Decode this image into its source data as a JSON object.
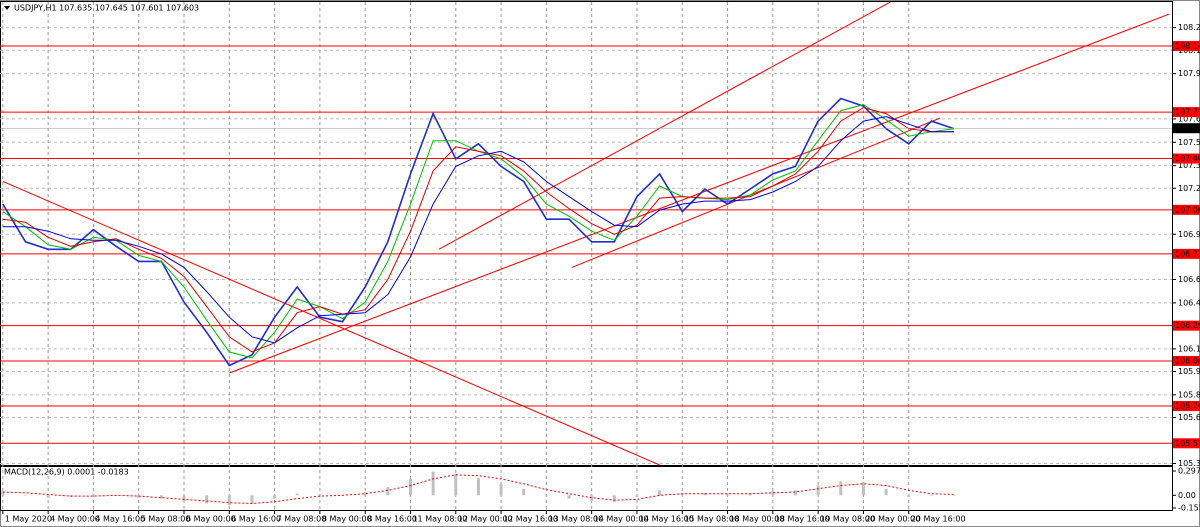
{
  "chart_data": [
    {
      "type": "line",
      "title": "USDJPY,H1  107.635 107.645 107.601 107.603",
      "x": [
        0,
        8,
        16,
        24,
        32,
        40,
        48,
        56,
        64,
        72,
        80,
        88,
        96,
        104,
        112,
        120,
        128,
        136,
        144,
        152,
        160,
        168,
        176,
        184,
        192,
        200,
        208,
        216,
        224,
        232,
        240,
        248,
        256,
        264,
        272,
        280,
        288,
        296,
        304,
        312,
        320,
        328,
        336
      ],
      "series": [
        {
          "color": "#1f2fd0",
          "values": [
            107.1,
            106.85,
            106.8,
            106.8,
            106.93,
            106.82,
            106.72,
            106.72,
            106.45,
            106.25,
            106.03,
            106.1,
            106.35,
            106.55,
            106.35,
            106.32,
            106.55,
            106.85,
            107.3,
            107.7,
            107.4,
            107.5,
            107.35,
            107.25,
            107.0,
            107.0,
            106.85,
            106.85,
            107.15,
            107.3,
            107.05,
            107.2,
            107.1,
            107.2,
            107.3,
            107.35,
            107.65,
            107.8,
            107.75,
            107.6,
            107.5,
            107.65,
            107.6
          ]
        },
        {
          "color": "#00c000",
          "values": [
            107.05,
            106.95,
            106.83,
            106.8,
            106.88,
            106.86,
            106.76,
            106.72,
            106.55,
            106.33,
            106.12,
            106.08,
            106.25,
            106.47,
            106.42,
            106.34,
            106.45,
            106.72,
            107.1,
            107.52,
            107.52,
            107.45,
            107.4,
            107.28,
            107.1,
            107.02,
            106.92,
            106.86,
            107.02,
            107.22,
            107.15,
            107.14,
            107.13,
            107.16,
            107.26,
            107.32,
            107.52,
            107.72,
            107.76,
            107.66,
            107.55,
            107.58,
            107.6
          ]
        },
        {
          "color": "#e00000",
          "values": [
            107.0,
            106.98,
            106.88,
            106.82,
            106.85,
            106.87,
            106.8,
            106.74,
            106.62,
            106.42,
            106.22,
            106.12,
            106.18,
            106.38,
            106.42,
            106.37,
            106.4,
            106.6,
            106.92,
            107.32,
            107.48,
            107.45,
            107.42,
            107.32,
            107.18,
            107.07,
            106.97,
            106.9,
            106.96,
            107.14,
            107.15,
            107.14,
            107.14,
            107.15,
            107.22,
            107.3,
            107.45,
            107.65,
            107.74,
            107.7,
            107.6,
            107.58,
            107.58
          ]
        },
        {
          "color": "#0000e0",
          "values": [
            106.95,
            106.95,
            106.92,
            106.87,
            106.86,
            106.86,
            106.82,
            106.77,
            106.68,
            106.52,
            106.35,
            106.22,
            106.18,
            106.28,
            106.36,
            106.37,
            106.38,
            106.5,
            106.75,
            107.1,
            107.35,
            107.42,
            107.45,
            107.38,
            107.25,
            107.15,
            107.05,
            106.96,
            106.95,
            107.06,
            107.1,
            107.12,
            107.12,
            107.13,
            107.18,
            107.25,
            107.35,
            107.52,
            107.65,
            107.68,
            107.63,
            107.58,
            107.58
          ]
        }
      ],
      "xlim": [
        -1,
        413
      ],
      "ylim": [
        105.37,
        108.44
      ],
      "yticks": [
        {
          "value": 108.27,
          "label": "108.270"
        },
        {
          "value": 108.12,
          "label": "108.120"
        },
        107.965,
        107.665,
        {
          "value": 107.51,
          "label": "107.510"
        },
        107.355,
        107.205,
        {
          "value": 106.9,
          "label": "106.900"
        },
        {
          "value": 106.6,
          "label": "106.600"
        },
        106.445,
        {
          "value": 106.14,
          "label": "106.140"
        },
        {
          "value": 105.99,
          "label": "105.990"
        },
        105.835,
        105.685,
        {
          "value": 105.38,
          "label": "105.380"
        }
      ],
      "xticks": [
        {
          "value": 0,
          "label": "1 May 2020"
        },
        {
          "value": 16,
          "label": "4 May 00:00"
        },
        {
          "value": 32,
          "label": "4 May 16:00"
        },
        {
          "value": 48,
          "label": "5 May 08:00"
        },
        {
          "value": 64,
          "label": "6 May 00:00"
        },
        {
          "value": 80,
          "label": "6 May 16:00"
        },
        {
          "value": 96,
          "label": "7 May 08:00"
        },
        {
          "value": 112,
          "label": "8 May 00:00"
        },
        {
          "value": 128,
          "label": "8 May 16:00"
        },
        {
          "value": 144,
          "label": "11 May 08:00"
        },
        {
          "value": 160,
          "label": "12 May 00:00"
        },
        {
          "value": 176,
          "label": "12 May 16:00"
        },
        {
          "value": 192,
          "label": "13 May 08:00"
        },
        {
          "value": 208,
          "label": "14 May 00:00"
        },
        {
          "value": 224,
          "label": "14 May 16:00"
        },
        {
          "value": 240,
          "label": "15 May 08:00"
        },
        {
          "value": 256,
          "label": "18 May 00:00"
        },
        {
          "value": 272,
          "label": "18 May 16:00"
        },
        {
          "value": 288,
          "label": "19 May 08:00"
        },
        {
          "value": 304,
          "label": "20 May 00:00"
        },
        {
          "value": 320,
          "label": "20 May 16:00"
        }
      ],
      "levels": [
        108.148,
        {
          "value": 107.71,
          "label": "107.710"
        },
        107.402,
        107.062,
        {
          "value": 106.77,
          "label": "106.770"
        },
        106.294,
        {
          "value": 106.06,
          "label": "106.060"
        },
        105.761,
        105.514
      ],
      "level_color": "#ff0000",
      "last_price": 107.603,
      "trendlines": [
        {
          "x": [
            0,
            232
          ],
          "y": [
            107.25,
            105.37
          ]
        },
        {
          "x": [
            80,
            412
          ],
          "y": [
            105.98,
            108.36
          ]
        },
        {
          "x": [
            154,
            313.5
          ],
          "y": [
            106.8,
            108.44
          ]
        },
        {
          "x": [
            201,
            331
          ],
          "y": [
            106.68,
            107.67
          ]
        }
      ],
      "grid": true
    },
    {
      "type": "bar",
      "title": "MACD(12,26,9) 0.0001 -0.0183",
      "x": [
        0,
        8,
        16,
        24,
        32,
        40,
        48,
        56,
        64,
        72,
        80,
        88,
        96,
        104,
        112,
        120,
        128,
        136,
        144,
        152,
        160,
        168,
        176,
        184,
        192,
        200,
        208,
        216,
        224,
        232,
        240,
        248,
        256,
        264,
        272,
        280,
        288,
        296,
        304,
        312,
        320,
        328,
        336
      ],
      "values": [
        0.05,
        0.0,
        -0.03,
        -0.02,
        0.01,
        0.0,
        -0.03,
        -0.04,
        -0.07,
        -0.1,
        -0.12,
        -0.1,
        -0.04,
        0.02,
        0.01,
        0.0,
        0.04,
        0.1,
        0.2,
        0.29,
        0.26,
        0.21,
        0.14,
        0.08,
        0.0,
        -0.04,
        -0.07,
        -0.08,
        -0.02,
        0.06,
        0.02,
        0.03,
        0.01,
        0.02,
        0.05,
        0.06,
        0.12,
        0.17,
        0.16,
        0.08,
        -0.02,
        0.0,
        0.0
      ],
      "color": "#c0c0c0",
      "signal": {
        "color": "#ff0000",
        "values": [
          0.04,
          0.03,
          0.01,
          -0.01,
          -0.01,
          0.0,
          -0.01,
          -0.03,
          -0.05,
          -0.07,
          -0.09,
          -0.1,
          -0.08,
          -0.04,
          -0.01,
          0.0,
          0.02,
          0.06,
          0.12,
          0.2,
          0.25,
          0.24,
          0.2,
          0.14,
          0.07,
          0.02,
          -0.03,
          -0.06,
          -0.05,
          0.0,
          0.02,
          0.02,
          0.02,
          0.02,
          0.03,
          0.04,
          0.08,
          0.12,
          0.14,
          0.12,
          0.06,
          0.02,
          0.01
        ]
      },
      "xlim": [
        -1,
        413
      ],
      "ylim": [
        -0.192,
        0.358
      ],
      "yticks": [
        0.2973,
        {
          "value": 0,
          "label": "0.00"
        },
        -0.1553
      ]
    }
  ]
}
